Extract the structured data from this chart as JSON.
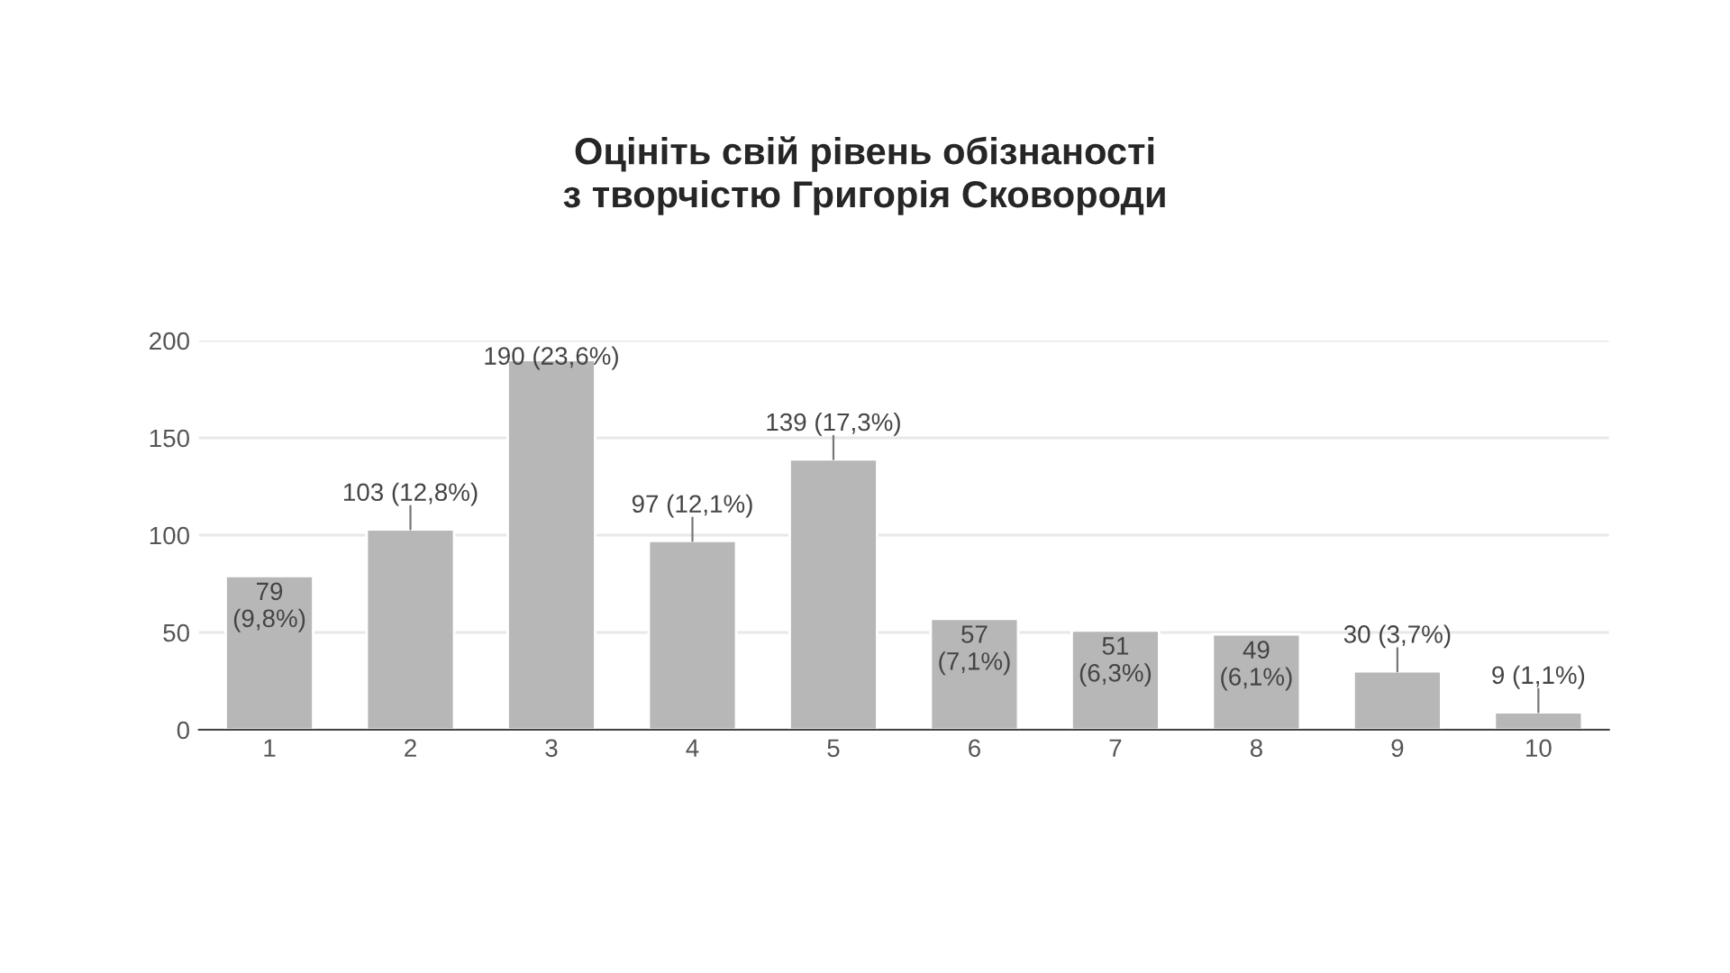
{
  "chart_data": {
    "type": "bar",
    "title": "Оцініть свій рівень обізнаності\nз творчістю Григорія Сковороди",
    "categories": [
      "1",
      "2",
      "3",
      "4",
      "5",
      "6",
      "7",
      "8",
      "9",
      "10"
    ],
    "values": [
      79,
      103,
      190,
      97,
      139,
      57,
      51,
      49,
      30,
      9
    ],
    "value_labels": [
      "79\n(9,8%)",
      "103 (12,8%)",
      "190 (23,6%)",
      "97 (12,1%)",
      "139 (17,3%)",
      "57\n(7,1%)",
      "51\n(6,3%)",
      "49\n(6,1%)",
      "30 (3,7%)",
      "9 (1,1%)"
    ],
    "color": "#b7b7b7",
    "ylim": [
      0,
      200
    ],
    "yticks": [
      0,
      50,
      100,
      150,
      200
    ],
    "grid": "y"
  }
}
